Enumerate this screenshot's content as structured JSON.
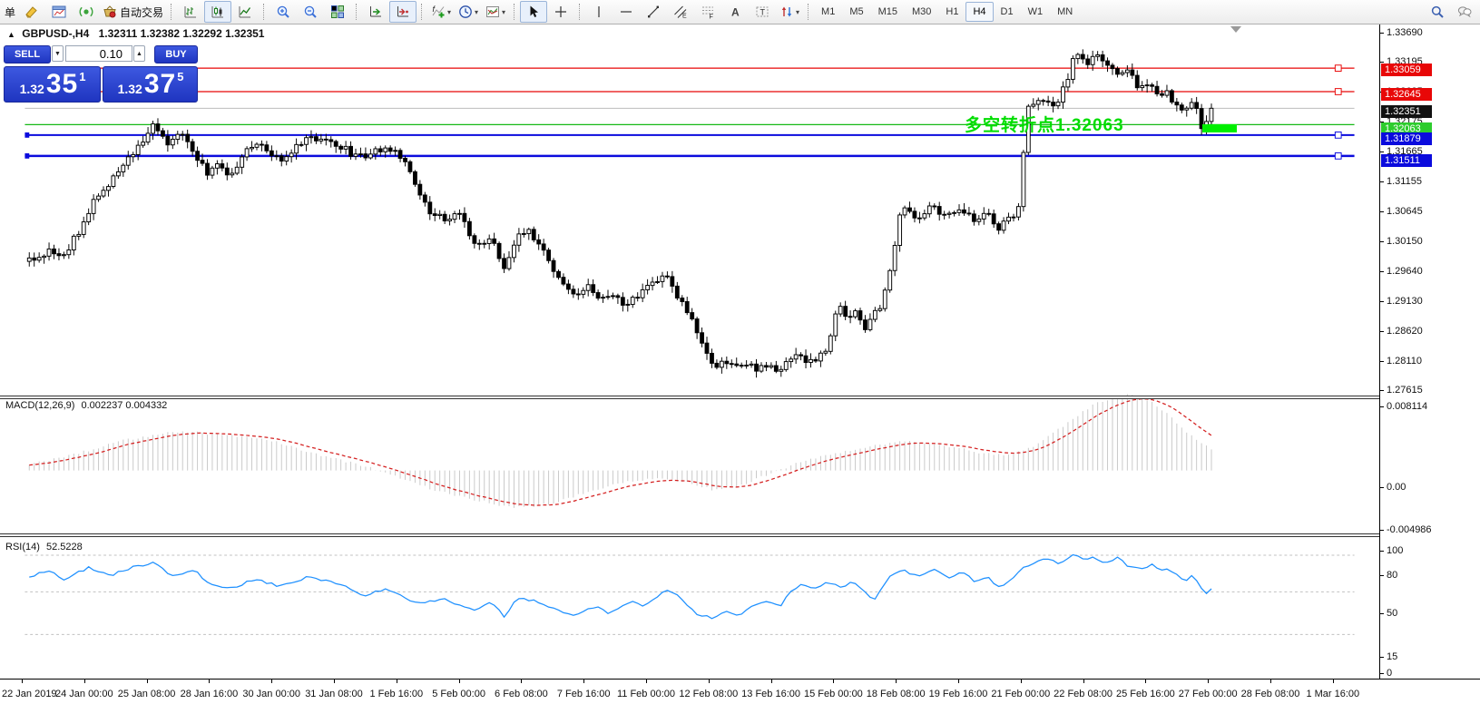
{
  "toolbar": {
    "partial_label": "单",
    "autotrading_label": "自动交易",
    "items": [
      {
        "kind": "label",
        "name": "new-order-partial-label",
        "text": "单"
      },
      {
        "kind": "icon",
        "name": "new-order"
      },
      {
        "kind": "icon",
        "name": "market-watch"
      },
      {
        "kind": "icon",
        "name": "signals"
      },
      {
        "kind": "textbtn",
        "name": "autotrading",
        "icon": "basket",
        "text": "自动交易"
      },
      {
        "kind": "sep"
      },
      {
        "kind": "icon",
        "name": "bar-chart"
      },
      {
        "kind": "icon",
        "name": "candle-chart",
        "active": true
      },
      {
        "kind": "icon",
        "name": "line-chart"
      },
      {
        "kind": "sep"
      },
      {
        "kind": "icon",
        "name": "zoom-in"
      },
      {
        "kind": "icon",
        "name": "zoom-out"
      },
      {
        "kind": "icon",
        "name": "tile-windows"
      },
      {
        "kind": "sep"
      },
      {
        "kind": "icon",
        "name": "auto-scroll"
      },
      {
        "kind": "icon",
        "name": "chart-shift",
        "active": true
      },
      {
        "kind": "sep"
      },
      {
        "kind": "icon",
        "name": "indicators",
        "dropdown": true
      },
      {
        "kind": "icon",
        "name": "periods",
        "dropdown": true
      },
      {
        "kind": "icon",
        "name": "templates",
        "dropdown": true
      },
      {
        "kind": "sep"
      },
      {
        "kind": "icon",
        "name": "cursor",
        "active": true
      },
      {
        "kind": "icon",
        "name": "crosshair"
      },
      {
        "kind": "sep"
      },
      {
        "kind": "icon",
        "name": "vertical-line"
      },
      {
        "kind": "icon",
        "name": "horizontal-line"
      },
      {
        "kind": "icon",
        "name": "trend-line"
      },
      {
        "kind": "icon",
        "name": "equidistant-channel"
      },
      {
        "kind": "icon",
        "name": "fibonacci"
      },
      {
        "kind": "icon",
        "name": "text"
      },
      {
        "kind": "icon",
        "name": "text-label"
      },
      {
        "kind": "icon",
        "name": "arrows",
        "dropdown": true
      },
      {
        "kind": "sep"
      },
      {
        "kind": "tf",
        "name": "tf-m1",
        "text": "M1"
      },
      {
        "kind": "tf",
        "name": "tf-m5",
        "text": "M5"
      },
      {
        "kind": "tf",
        "name": "tf-m15",
        "text": "M15"
      },
      {
        "kind": "tf",
        "name": "tf-m30",
        "text": "M30"
      },
      {
        "kind": "tf",
        "name": "tf-h1",
        "text": "H1"
      },
      {
        "kind": "tf",
        "name": "tf-h4",
        "text": "H4",
        "active": true
      },
      {
        "kind": "tf",
        "name": "tf-d1",
        "text": "D1"
      },
      {
        "kind": "tf",
        "name": "tf-w1",
        "text": "W1"
      },
      {
        "kind": "tf",
        "name": "tf-mn",
        "text": "MN"
      },
      {
        "kind": "spacer"
      },
      {
        "kind": "icon",
        "name": "search"
      },
      {
        "kind": "icon",
        "name": "chat"
      }
    ]
  },
  "chart": {
    "title": {
      "collapse": "▲",
      "symbol": "GBPUSD-,H4",
      "ohlc": "1.32311 1.32382 1.32292 1.32351"
    },
    "trade_panel": {
      "sell_label": "SELL",
      "buy_label": "BUY",
      "lot_value": "0.10",
      "spin_down": "▼",
      "spin_up": "▲",
      "sell_price_small": "1.32",
      "sell_price_big": "35",
      "sell_price_sup": "1",
      "buy_price_small": "1.32",
      "buy_price_big": "37",
      "buy_price_sup": "5"
    },
    "annotation": {
      "text": "多空转折点1.32063",
      "color": "#00dd00"
    },
    "price_axis_ticks": [
      "1.33690",
      "1.33195",
      "1.32685",
      "1.32175",
      "1.31665",
      "1.31155",
      "1.30645",
      "1.30150",
      "1.29640",
      "1.29130",
      "1.28620",
      "1.28110",
      "1.27615"
    ],
    "price_tags": [
      {
        "text": "1.33059",
        "bg": "#e80707"
      },
      {
        "text": "1.32645",
        "bg": "#e80707"
      },
      {
        "text": "1.32351",
        "bg": "#111111"
      },
      {
        "text": "1.32063",
        "bg": "#2ecc2e"
      },
      {
        "text": "1.31879",
        "bg": "#0b0bdd"
      },
      {
        "text": "1.31511",
        "bg": "#0b0bdd"
      }
    ],
    "lines": [
      {
        "price": 1.33059,
        "color": "#e80707",
        "width": 1.4,
        "handle": true,
        "left_mark": false
      },
      {
        "price": 1.32645,
        "color": "#e80707",
        "width": 1.4,
        "handle": true,
        "left_mark": false
      },
      {
        "price": 1.32351,
        "color": "#bdbdbd",
        "width": 1,
        "handle": false,
        "left_mark": false
      },
      {
        "price": 1.32063,
        "color": "#17b917",
        "width": 1.4,
        "handle": false,
        "left_mark": false
      },
      {
        "price": 1.31879,
        "color": "#0b0bdd",
        "width": 2,
        "handle": true,
        "left_mark": true
      },
      {
        "price": 1.31511,
        "color": "#0b0bdd",
        "width": 2.6,
        "handle": true,
        "left_mark": true
      }
    ]
  },
  "macd": {
    "label": "MACD(12,26,9)",
    "values": "0.002237 0.004332",
    "axis": [
      "0.008114",
      "0.00",
      "-0.004986"
    ]
  },
  "rsi": {
    "label": "RSI(14)",
    "value": "52.5228",
    "axis": [
      "100",
      "80",
      "50",
      "15",
      "0"
    ],
    "levels": [
      80,
      50,
      15
    ]
  },
  "time_axis": {
    "labels": [
      "22 Jan 2019",
      "24 Jan 00:00",
      "25 Jan 08:00",
      "28 Jan 16:00",
      "30 Jan 00:00",
      "31 Jan 08:00",
      "1 Feb 16:00",
      "5 Feb 00:00",
      "6 Feb 08:00",
      "7 Feb 16:00",
      "11 Feb 00:00",
      "12 Feb 08:00",
      "13 Feb 16:00",
      "15 Feb 00:00",
      "18 Feb 08:00",
      "19 Feb 16:00",
      "21 Feb 00:00",
      "22 Feb 08:00",
      "25 Feb 16:00",
      "27 Feb 00:00",
      "28 Feb 08:00",
      "1 Mar 16:00"
    ]
  },
  "chart_data": [
    {
      "type": "candlestick",
      "symbol": "GBPUSD-",
      "period": "H4",
      "ohlc_current": {
        "open": 1.32311,
        "high": 1.32382,
        "low": 1.32292,
        "close": 1.32351
      },
      "ylim": [
        1.27615,
        1.3369
      ],
      "x_range": [
        "22 Jan 2019",
        "1 Mar 16:00"
      ],
      "price_anchors": [
        [
          0.0,
          1.2968
        ],
        [
          0.015,
          1.2982
        ],
        [
          0.03,
          1.2975
        ],
        [
          0.045,
          1.303
        ],
        [
          0.055,
          1.3075
        ],
        [
          0.075,
          1.3118
        ],
        [
          0.09,
          1.3165
        ],
        [
          0.107,
          1.3208
        ],
        [
          0.118,
          1.3165
        ],
        [
          0.128,
          1.3198
        ],
        [
          0.14,
          1.315
        ],
        [
          0.151,
          1.3122
        ],
        [
          0.162,
          1.314
        ],
        [
          0.17,
          1.3112
        ],
        [
          0.183,
          1.316
        ],
        [
          0.195,
          1.3178
        ],
        [
          0.205,
          1.3155
        ],
        [
          0.214,
          1.3147
        ],
        [
          0.225,
          1.3165
        ],
        [
          0.236,
          1.3188
        ],
        [
          0.25,
          1.3178
        ],
        [
          0.262,
          1.317
        ],
        [
          0.273,
          1.3155
        ],
        [
          0.284,
          1.3152
        ],
        [
          0.3,
          1.3162
        ],
        [
          0.31,
          1.3165
        ],
        [
          0.318,
          1.314
        ],
        [
          0.328,
          1.309
        ],
        [
          0.338,
          1.3052
        ],
        [
          0.35,
          1.304
        ],
        [
          0.365,
          1.3055
        ],
        [
          0.376,
          1.2995
        ],
        [
          0.391,
          1.3005
        ],
        [
          0.402,
          1.2955
        ],
        [
          0.413,
          1.3005
        ],
        [
          0.42,
          1.3025
        ],
        [
          0.431,
          1.3
        ],
        [
          0.443,
          1.295
        ],
        [
          0.455,
          1.2922
        ],
        [
          0.461,
          1.2905
        ],
        [
          0.472,
          1.2925
        ],
        [
          0.483,
          1.2895
        ],
        [
          0.493,
          1.2912
        ],
        [
          0.505,
          1.2888
        ],
        [
          0.515,
          1.2905
        ],
        [
          0.527,
          1.2928
        ],
        [
          0.538,
          1.294
        ],
        [
          0.549,
          1.29
        ],
        [
          0.558,
          1.2868
        ],
        [
          0.565,
          1.2845
        ],
        [
          0.572,
          1.2808
        ],
        [
          0.579,
          1.2772
        ],
        [
          0.59,
          1.279
        ],
        [
          0.597,
          1.2775
        ],
        [
          0.605,
          1.279
        ],
        [
          0.615,
          1.2772
        ],
        [
          0.625,
          1.2782
        ],
        [
          0.635,
          1.277
        ],
        [
          0.645,
          1.28
        ],
        [
          0.655,
          1.279
        ],
        [
          0.665,
          1.2795
        ],
        [
          0.675,
          1.2815
        ],
        [
          0.684,
          1.2885
        ],
        [
          0.692,
          1.287
        ],
        [
          0.7,
          1.288
        ],
        [
          0.708,
          1.2845
        ],
        [
          0.715,
          1.2872
        ],
        [
          0.722,
          1.289
        ],
        [
          0.73,
          1.2975
        ],
        [
          0.7375,
          1.3058
        ],
        [
          0.749,
          1.3042
        ],
        [
          0.763,
          1.306
        ],
        [
          0.774,
          1.3042
        ],
        [
          0.789,
          1.3055
        ],
        [
          0.8,
          1.3035
        ],
        [
          0.811,
          1.3052
        ],
        [
          0.819,
          1.3022
        ],
        [
          0.83,
          1.3045
        ],
        [
          0.838,
          1.306
        ],
        [
          0.8435,
          1.3235
        ],
        [
          0.852,
          1.3242
        ],
        [
          0.859,
          1.3255
        ],
        [
          0.8665,
          1.3235
        ],
        [
          0.878,
          1.3282
        ],
        [
          0.885,
          1.334
        ],
        [
          0.896,
          1.331
        ],
        [
          0.903,
          1.3335
        ],
        [
          0.9145,
          1.3302
        ],
        [
          0.922,
          1.329
        ],
        [
          0.929,
          1.3305
        ],
        [
          0.937,
          1.3272
        ],
        [
          0.948,
          1.3282
        ],
        [
          0.955,
          1.3252
        ],
        [
          0.962,
          1.3262
        ],
        [
          0.97,
          1.3242
        ],
        [
          0.977,
          1.3225
        ],
        [
          0.9845,
          1.3252
        ],
        [
          0.992,
          1.3195
        ],
        [
          1.0,
          1.32351
        ]
      ]
    },
    {
      "type": "macd-histogram",
      "label": "MACD(12,26,9)",
      "current_macd": 0.002237,
      "current_signal": 0.004332,
      "ylim": [
        -0.004986,
        0.008114
      ],
      "anchors": [
        [
          0.0,
          0.0006
        ],
        [
          0.04,
          0.0018
        ],
        [
          0.08,
          0.0032
        ],
        [
          0.115,
          0.004
        ],
        [
          0.13,
          0.0042
        ],
        [
          0.16,
          0.0038
        ],
        [
          0.2,
          0.0034
        ],
        [
          0.24,
          0.0018
        ],
        [
          0.28,
          0.0006
        ],
        [
          0.31,
          -0.0006
        ],
        [
          0.345,
          -0.0022
        ],
        [
          0.38,
          -0.0032
        ],
        [
          0.41,
          -0.004
        ],
        [
          0.44,
          -0.0036
        ],
        [
          0.47,
          -0.0024
        ],
        [
          0.5,
          -0.0013
        ],
        [
          0.53,
          -0.0008
        ],
        [
          0.555,
          -0.0012
        ],
        [
          0.58,
          -0.0021
        ],
        [
          0.6,
          -0.0017
        ],
        [
          0.625,
          -0.0004
        ],
        [
          0.65,
          0.0008
        ],
        [
          0.68,
          0.0018
        ],
        [
          0.71,
          0.0026
        ],
        [
          0.74,
          0.0031
        ],
        [
          0.77,
          0.0028
        ],
        [
          0.8,
          0.002
        ],
        [
          0.825,
          0.0016
        ],
        [
          0.85,
          0.0026
        ],
        [
          0.875,
          0.0048
        ],
        [
          0.9,
          0.007
        ],
        [
          0.92,
          0.008
        ],
        [
          0.935,
          0.0081
        ],
        [
          0.95,
          0.0073
        ],
        [
          0.965,
          0.0058
        ],
        [
          0.98,
          0.004
        ],
        [
          1.0,
          0.002237
        ]
      ]
    },
    {
      "type": "line",
      "label": "RSI(14)",
      "current": 52.5228,
      "ylim": [
        0,
        100
      ],
      "levels": [
        80,
        50,
        15
      ],
      "anchors": [
        [
          0.0,
          62
        ],
        [
          0.015,
          68
        ],
        [
          0.03,
          60
        ],
        [
          0.05,
          70
        ],
        [
          0.07,
          64
        ],
        [
          0.09,
          71
        ],
        [
          0.107,
          74
        ],
        [
          0.12,
          62
        ],
        [
          0.14,
          67
        ],
        [
          0.155,
          55
        ],
        [
          0.17,
          52
        ],
        [
          0.19,
          60
        ],
        [
          0.21,
          55
        ],
        [
          0.236,
          62
        ],
        [
          0.262,
          57
        ],
        [
          0.284,
          47
        ],
        [
          0.3,
          52
        ],
        [
          0.33,
          40
        ],
        [
          0.35,
          44
        ],
        [
          0.376,
          35
        ],
        [
          0.391,
          42
        ],
        [
          0.402,
          30
        ],
        [
          0.413,
          45
        ],
        [
          0.431,
          42
        ],
        [
          0.445,
          35
        ],
        [
          0.461,
          31
        ],
        [
          0.48,
          38
        ],
        [
          0.49,
          33
        ],
        [
          0.51,
          42
        ],
        [
          0.52,
          37
        ],
        [
          0.538,
          52
        ],
        [
          0.549,
          47
        ],
        [
          0.565,
          32
        ],
        [
          0.58,
          28
        ],
        [
          0.59,
          34
        ],
        [
          0.6,
          30
        ],
        [
          0.612,
          38
        ],
        [
          0.625,
          43
        ],
        [
          0.636,
          39
        ],
        [
          0.645,
          52
        ],
        [
          0.655,
          56
        ],
        [
          0.665,
          52
        ],
        [
          0.675,
          58
        ],
        [
          0.686,
          54
        ],
        [
          0.697,
          58
        ],
        [
          0.708,
          48
        ],
        [
          0.715,
          44
        ],
        [
          0.727,
          62
        ],
        [
          0.74,
          68
        ],
        [
          0.752,
          62
        ],
        [
          0.765,
          68
        ],
        [
          0.777,
          61
        ],
        [
          0.79,
          66
        ],
        [
          0.8,
          58
        ],
        [
          0.81,
          63
        ],
        [
          0.82,
          54
        ],
        [
          0.83,
          59
        ],
        [
          0.842,
          70
        ],
        [
          0.853,
          75
        ],
        [
          0.863,
          78
        ],
        [
          0.872,
          73
        ],
        [
          0.878,
          76
        ],
        [
          0.885,
          81
        ],
        [
          0.893,
          75
        ],
        [
          0.9,
          79
        ],
        [
          0.91,
          74
        ],
        [
          0.92,
          78
        ],
        [
          0.93,
          71
        ],
        [
          0.94,
          69
        ],
        [
          0.95,
          72
        ],
        [
          0.957,
          67
        ],
        [
          0.963,
          70
        ],
        [
          0.972,
          63
        ],
        [
          0.978,
          59
        ],
        [
          0.985,
          64
        ],
        [
          0.991,
          53
        ],
        [
          0.996,
          49
        ],
        [
          1.0,
          52.5
        ]
      ]
    }
  ]
}
